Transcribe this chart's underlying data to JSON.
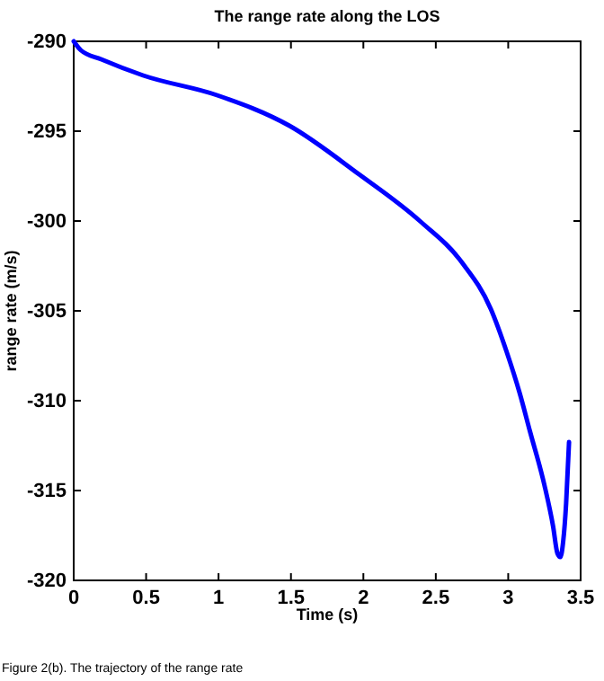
{
  "chart_data": {
    "type": "line",
    "title": "The range rate along the LOS",
    "xlabel": "Time (s)",
    "ylabel": "range rate (m/s)",
    "annotations": [
      "Figure 2(b). The trajectory of the range rate"
    ],
    "x": [
      0,
      0.05,
      0.19,
      0.48,
      0.99,
      1.49,
      1.97,
      2.39,
      2.68,
      2.88,
      2.99,
      3.08,
      3.15,
      3.25,
      3.31,
      3.34,
      3.36,
      3.38,
      3.4,
      3.42
    ],
    "series": [
      {
        "color": "#0000ff",
        "values": [
          -290,
          -290.5,
          -291.0,
          -291.9,
          -293.0,
          -294.7,
          -297.4,
          -300.0,
          -302.3,
          -304.9,
          -307.3,
          -309.6,
          -311.7,
          -314.7,
          -317.0,
          -318.5,
          -318.7,
          -317.8,
          -315.7,
          -312.3
        ]
      }
    ],
    "xlim": [
      0,
      3.5
    ],
    "ylim": [
      -320,
      -290
    ],
    "xticks": [
      0,
      0.5,
      1,
      1.5,
      2,
      2.5,
      3,
      3.5
    ],
    "yticks": [
      -320,
      -315,
      -310,
      -305,
      -300,
      -295,
      -290
    ],
    "grid": false,
    "marker": "none",
    "line_style": "solid"
  }
}
